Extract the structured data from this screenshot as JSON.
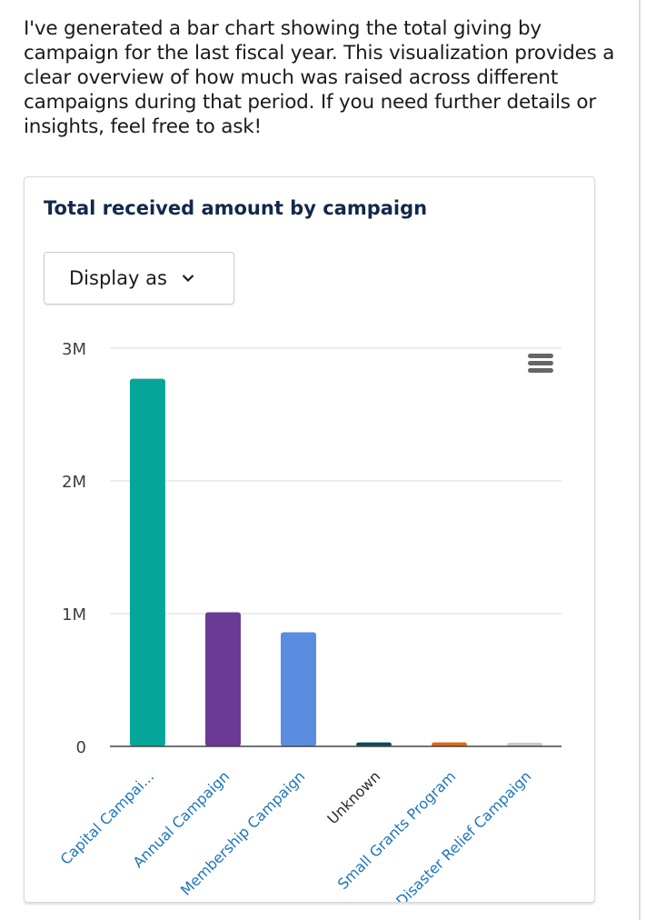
{
  "message": "I've generated a bar chart showing the total giving by campaign for the last fiscal year. This visualization provides a clear overview of how much was raised across different campaigns during that period. If you need further details or insights, feel free to ask!",
  "card": {
    "title": "Total received amount by campaign",
    "display_as_label": "Display as",
    "menu_icon": "hamburger-menu-icon"
  },
  "chart_data": {
    "type": "bar",
    "categories": [
      "Capital Campai...",
      "Annual Campaign",
      "Membership Campaign",
      "Unknown",
      "Small Grants Program",
      "Disaster Relief Campaign"
    ],
    "values": [
      2770000,
      1010000,
      860000,
      30000,
      30000,
      5000
    ],
    "colors": [
      "#06a59a",
      "#6b3a94",
      "#5a8ddf",
      "#0b4b5a",
      "#dd6a12",
      "#c9c9c9"
    ],
    "label_colors": [
      "#1b75bb",
      "#1b75bb",
      "#1b75bb",
      "#2b2b2b",
      "#1b75bb",
      "#1b75bb"
    ],
    "yticks": [
      0,
      1000000,
      2000000,
      3000000
    ],
    "ytick_labels": [
      "0",
      "1M",
      "2M",
      "3M"
    ],
    "ylim": [
      0,
      3000000
    ],
    "grid": true
  }
}
